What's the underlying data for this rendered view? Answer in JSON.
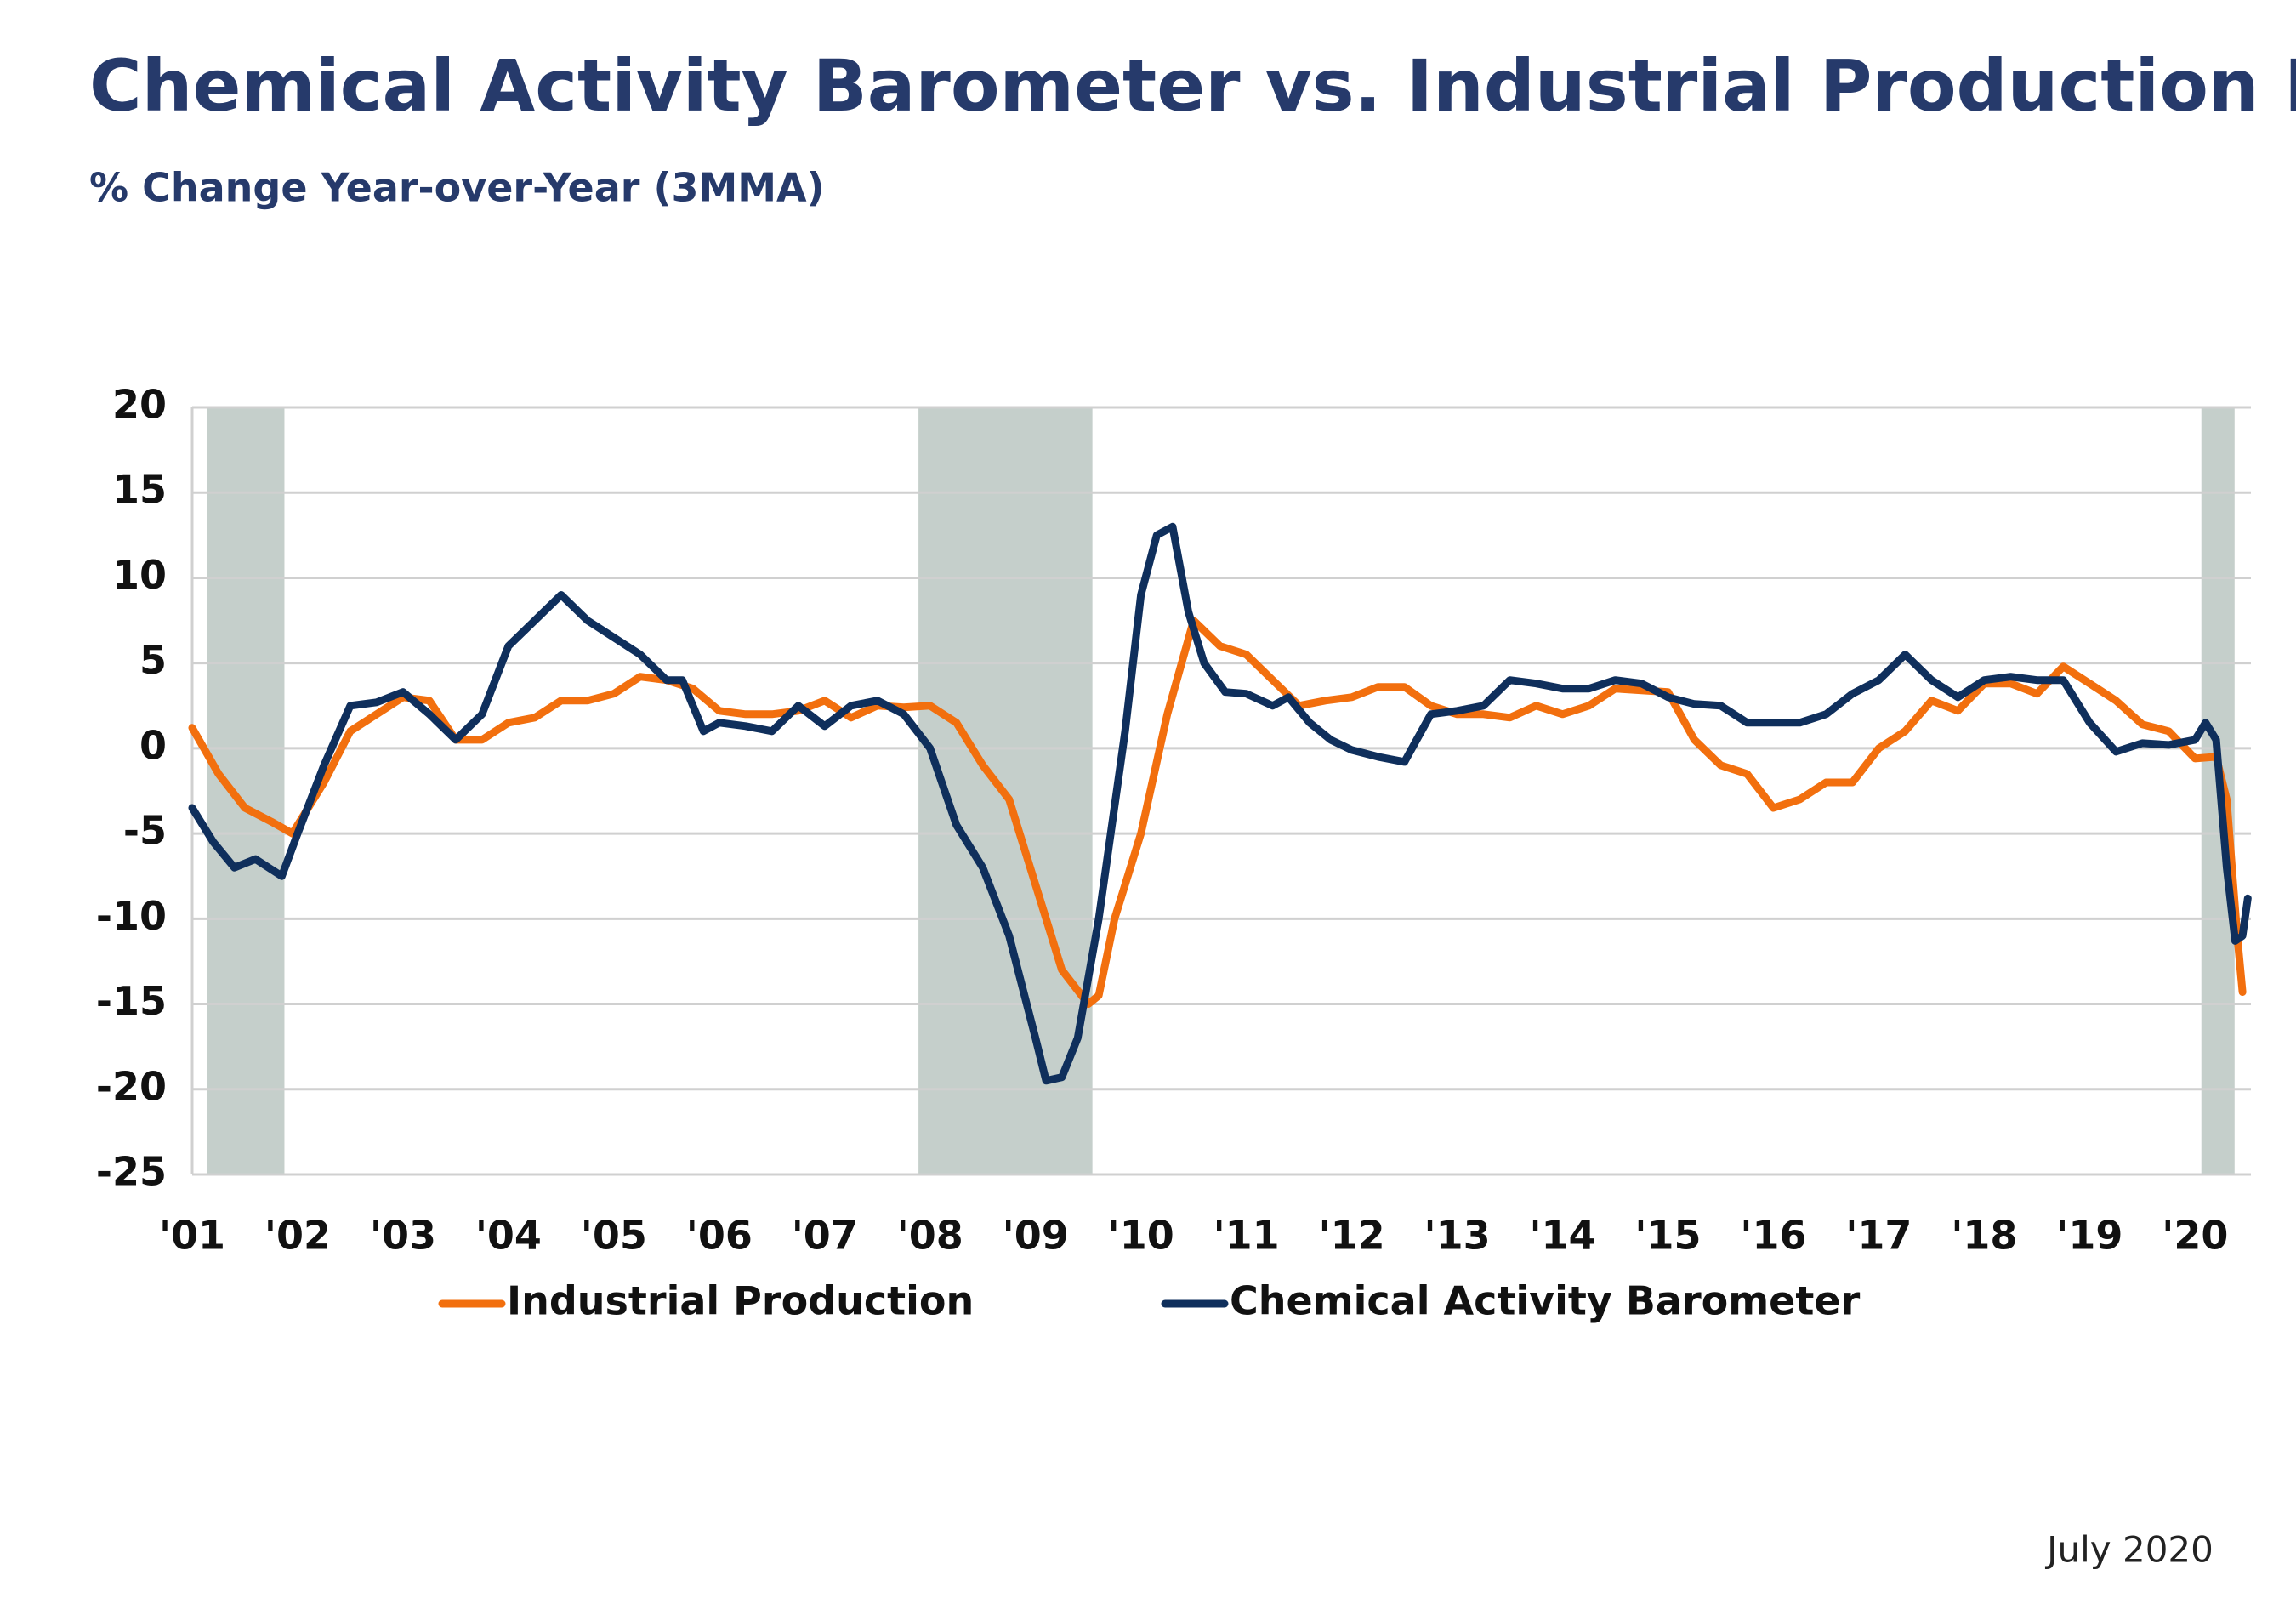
{
  "chart_data": {
    "type": "line",
    "title": "Chemical Activity Barometer vs. Industrial Production Index",
    "subtitle": "% Change Year-over-Year (3MMA)",
    "note": "July 2020",
    "xlim": [
      2001,
      2020.53
    ],
    "ylim": [
      -25,
      20
    ],
    "yticks": [
      -25,
      -20,
      -15,
      -10,
      -5,
      0,
      5,
      10,
      15,
      20
    ],
    "xticks": [
      {
        "value": 2001,
        "label": "'01"
      },
      {
        "value": 2002,
        "label": "'02"
      },
      {
        "value": 2003,
        "label": "'03"
      },
      {
        "value": 2004,
        "label": "'04"
      },
      {
        "value": 2005,
        "label": "'05"
      },
      {
        "value": 2006,
        "label": "'06"
      },
      {
        "value": 2007,
        "label": "'07"
      },
      {
        "value": 2008,
        "label": "'08"
      },
      {
        "value": 2009,
        "label": "'09"
      },
      {
        "value": 2010,
        "label": "'10"
      },
      {
        "value": 2011,
        "label": "'11"
      },
      {
        "value": 2012,
        "label": "'12"
      },
      {
        "value": 2013,
        "label": "'13"
      },
      {
        "value": 2014,
        "label": "'14"
      },
      {
        "value": 2015,
        "label": "'15"
      },
      {
        "value": 2016,
        "label": "'16"
      },
      {
        "value": 2017,
        "label": "'17"
      },
      {
        "value": 2018,
        "label": "'18"
      },
      {
        "value": 2019,
        "label": "'19"
      },
      {
        "value": 2020,
        "label": "'20"
      }
    ],
    "grid": true,
    "legend": "bottom",
    "shaded_periods": {
      "color": "#c5cfcb",
      "ranges": [
        [
          2001.14,
          2001.875
        ],
        [
          2007.89,
          2009.54
        ],
        [
          2020.06,
          2020.375
        ]
      ]
    },
    "series": [
      {
        "name": "Industrial Production",
        "color": "#f26f0e",
        "x": [
          2001.0,
          2001.25,
          2001.5,
          2001.75,
          2001.95,
          2002.25,
          2002.5,
          2002.75,
          2003.0,
          2003.25,
          2003.5,
          2003.75,
          2004.0,
          2004.25,
          2004.5,
          2004.75,
          2005.0,
          2005.25,
          2005.5,
          2005.75,
          2006.0,
          2006.25,
          2006.5,
          2006.75,
          2007.0,
          2007.25,
          2007.5,
          2007.75,
          2008.0,
          2008.25,
          2008.5,
          2008.75,
          2009.0,
          2009.25,
          2009.5,
          2009.6,
          2009.75,
          2010.0,
          2010.25,
          2010.5,
          2010.75,
          2011.0,
          2011.25,
          2011.5,
          2011.75,
          2012.0,
          2012.25,
          2012.5,
          2012.75,
          2013.0,
          2013.25,
          2013.5,
          2013.75,
          2014.0,
          2014.25,
          2014.5,
          2014.75,
          2015.0,
          2015.25,
          2015.5,
          2015.75,
          2016.0,
          2016.25,
          2016.5,
          2016.75,
          2017.0,
          2017.25,
          2017.5,
          2017.75,
          2018.0,
          2018.25,
          2018.5,
          2018.75,
          2019.0,
          2019.25,
          2019.5,
          2019.75,
          2020.0,
          2020.2,
          2020.3,
          2020.4,
          2020.45
        ],
        "values": [
          1.2,
          -1.5,
          -3.5,
          -4.3,
          -5,
          -2,
          1,
          2,
          3,
          2.8,
          0.5,
          0.5,
          1.5,
          1.8,
          2.8,
          2.8,
          3.2,
          4.2,
          4,
          3.5,
          2.2,
          2,
          2,
          2.2,
          2.8,
          1.8,
          2.5,
          2.4,
          2.5,
          1.5,
          -1,
          -3,
          -8,
          -13,
          -15,
          -14.5,
          -10,
          -5,
          2,
          7.5,
          6,
          5.5,
          4,
          2.5,
          2.8,
          3,
          3.6,
          3.6,
          2.5,
          2,
          2,
          1.8,
          2.5,
          2,
          2.5,
          3.5,
          3.4,
          3.3,
          0.5,
          -1,
          -1.5,
          -3.5,
          -3,
          -2,
          -2,
          0,
          1,
          2.8,
          2.2,
          3.8,
          3.8,
          3.2,
          4.8,
          3.8,
          2.8,
          1.4,
          1,
          -0.6,
          -0.5,
          -3,
          -11,
          -14.3
        ]
      },
      {
        "name": "Chemical Activity Barometer",
        "color": "#0f2f5c",
        "x": [
          2001.0,
          2001.2,
          2001.4,
          2001.6,
          2001.85,
          2002.0,
          2002.25,
          2002.5,
          2002.75,
          2003.0,
          2003.25,
          2003.5,
          2003.75,
          2004.0,
          2004.25,
          2004.5,
          2004.75,
          2005.0,
          2005.25,
          2005.5,
          2005.65,
          2005.85,
          2006.0,
          2006.25,
          2006.5,
          2006.75,
          2007.0,
          2007.25,
          2007.5,
          2007.75,
          2008.0,
          2008.25,
          2008.5,
          2008.75,
          2009.0,
          2009.1,
          2009.25,
          2009.4,
          2009.6,
          2009.85,
          2010.0,
          2010.15,
          2010.3,
          2010.45,
          2010.6,
          2010.8,
          2011.0,
          2011.25,
          2011.4,
          2011.6,
          2011.8,
          2012.0,
          2012.25,
          2012.5,
          2012.75,
          2013.0,
          2013.25,
          2013.5,
          2013.75,
          2014.0,
          2014.25,
          2014.5,
          2014.75,
          2015.0,
          2015.25,
          2015.5,
          2015.75,
          2016.0,
          2016.25,
          2016.5,
          2016.75,
          2017.0,
          2017.25,
          2017.5,
          2017.75,
          2018.0,
          2018.25,
          2018.5,
          2018.75,
          2019.0,
          2019.25,
          2019.5,
          2019.75,
          2020.0,
          2020.1,
          2020.2,
          2020.3,
          2020.38,
          2020.45,
          2020.5
        ],
        "values": [
          -3.5,
          -5.5,
          -7,
          -6.5,
          -7.5,
          -5,
          -1,
          2.5,
          2.7,
          3.3,
          2,
          0.5,
          2,
          6,
          7.5,
          9,
          7.5,
          6.5,
          5.5,
          4,
          4,
          1,
          1.5,
          1.3,
          1,
          2.5,
          1.3,
          2.5,
          2.8,
          2,
          0,
          -4.5,
          -7,
          -11,
          -17,
          -19.5,
          -19.3,
          -17,
          -10,
          1,
          9,
          12.5,
          13,
          8,
          5,
          3.3,
          3.2,
          2.5,
          3,
          1.5,
          0.5,
          -0.1,
          -0.5,
          -0.8,
          2,
          2.2,
          2.5,
          4,
          3.8,
          3.5,
          3.5,
          4,
          3.8,
          3,
          2.6,
          2.5,
          1.5,
          1.5,
          1.5,
          2,
          3.2,
          4,
          5.5,
          4,
          3,
          4,
          4.2,
          4,
          4,
          1.5,
          -0.2,
          0.3,
          0.2,
          0.5,
          1.5,
          0.5,
          -7,
          -11.3,
          -11,
          -8.8
        ]
      }
    ]
  }
}
